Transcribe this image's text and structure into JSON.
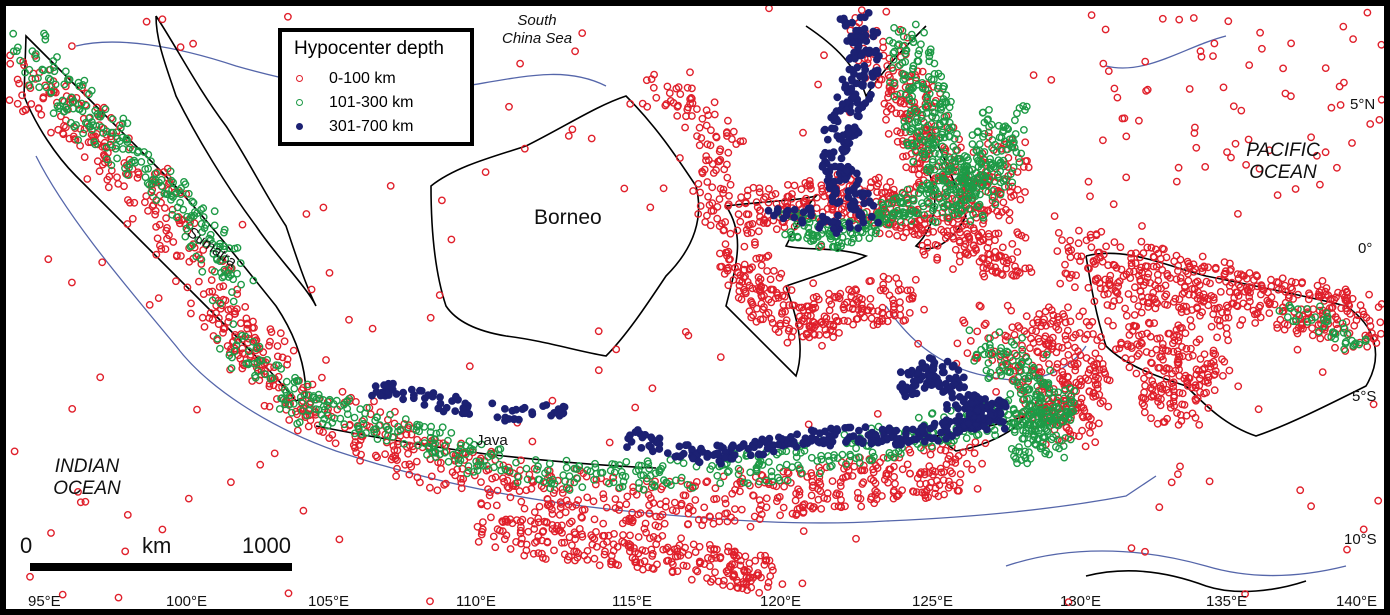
{
  "legend": {
    "title": "Hypocenter depth",
    "items": [
      {
        "label": "0-100 km",
        "color": "#e0202b",
        "filled": false
      },
      {
        "label": "101-300 km",
        "color": "#1e9a46",
        "filled": false
      },
      {
        "label": "301-700 km",
        "color": "#1c2173",
        "filled": true
      }
    ]
  },
  "labels": {
    "south_china_sea_1": "South",
    "south_china_sea_2": "China Sea",
    "pacific_1": "PACIFIC",
    "pacific_2": "OCEAN",
    "indian_1": "INDIAN",
    "indian_2": "OCEAN",
    "borneo": "Borneo",
    "sumatra": "Sumatra",
    "java": "Java"
  },
  "scale": {
    "start": "0",
    "unit": "km",
    "end": "1000"
  },
  "lon_ticks": [
    "95°E",
    "100°E",
    "105°E",
    "110°E",
    "115°E",
    "120°E",
    "125°E",
    "130°E",
    "135°E",
    "140°E"
  ],
  "lat_ticks": [
    "5°N",
    "0°",
    "5°S",
    "10°S"
  ],
  "colors": {
    "shallow": "#e0202b",
    "intermediate": "#1e9a46",
    "deep": "#1c2173",
    "coast": "#000000",
    "bathymetry": "#5566aa"
  }
}
